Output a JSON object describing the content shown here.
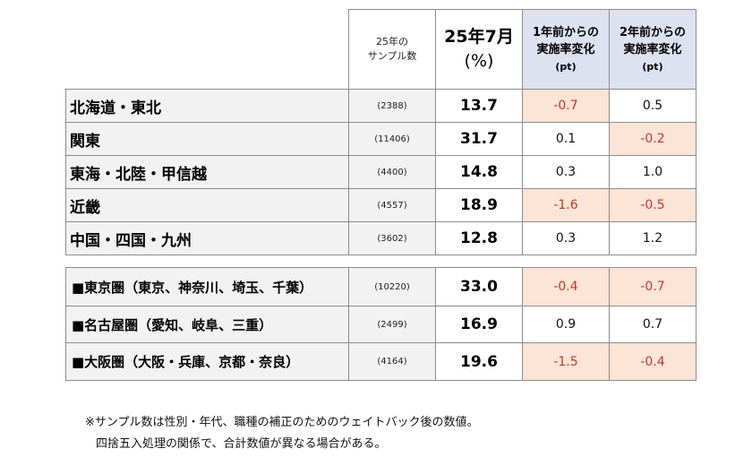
{
  "header": {
    "sample_line1": "25年の",
    "sample_line2": "サンプル数",
    "value_line1": "25年7月",
    "value_line2": "(%)",
    "diff1_line1": "1年前からの",
    "diff1_line2": "実施率変化",
    "diff1_line3": "(pt)",
    "diff2_line1": "2年前からの",
    "diff2_line2": "実施率変化",
    "diff2_line3": "(pt)"
  },
  "regions": [
    {
      "name": "北海道・東北",
      "n": "(2388)",
      "value": "13.7",
      "d1": "-0.7",
      "d2": "0.5"
    },
    {
      "name": "関東",
      "n": "(11406)",
      "value": "31.7",
      "d1": "0.1",
      "d2": "-0.2"
    },
    {
      "name": "東海・北陸・甲信越",
      "n": "(4400)",
      "value": "14.8",
      "d1": "0.3",
      "d2": "1.0"
    },
    {
      "name": "近畿",
      "n": "(4557)",
      "value": "18.9",
      "d1": "-1.6",
      "d2": "-0.5"
    },
    {
      "name": "中国・四国・九州",
      "n": "(3602)",
      "value": "12.8",
      "d1": "0.3",
      "d2": "1.2"
    }
  ],
  "metros": [
    {
      "name": "■東京圏（東京、神奈川、埼玉、千葉）",
      "n": "(10220)",
      "value": "33.0",
      "d1": "-0.4",
      "d2": "-0.7"
    },
    {
      "name": "■名古屋圏（愛知、岐阜、三重）",
      "n": "(2499)",
      "value": "16.9",
      "d1": "0.9",
      "d2": "0.7"
    },
    {
      "name": "■大阪圏（大阪・兵庫、京都・奈良）",
      "n": "(4164)",
      "value": "19.6",
      "d1": "-1.5",
      "d2": "-0.4"
    }
  ],
  "footnote": {
    "line1": "※サンプル数は性別・年代、職種の補正のためのウェイトバック後の数値。",
    "line2": "四捨五入処理の関係で、合計数値が異なる場合がある。"
  },
  "colors": {
    "negative_bg": "#fce4d6",
    "negative_text": "#c0392b",
    "header_bg": "#dde1f0",
    "label_bg": "#f2f2f2"
  }
}
